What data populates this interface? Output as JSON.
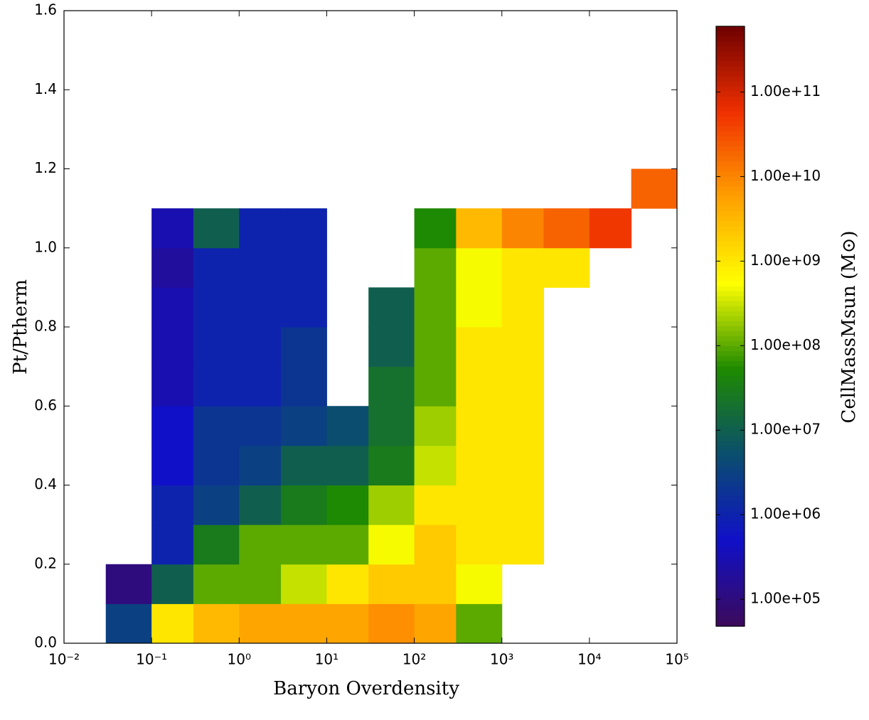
{
  "chart_data": {
    "type": "heatmap",
    "x_label": "Baryon Overdensity",
    "y_label": "Pt/Ptherm",
    "colorbar_label": "CellMassMsun (M⊙)",
    "x_log": true,
    "color_log": true,
    "xlim": [
      0.01,
      100000
    ],
    "xticks": [
      {
        "value": 0.01,
        "label": "10⁻²"
      },
      {
        "value": 0.1,
        "label": "10⁻¹"
      },
      {
        "value": 1,
        "label": "10⁰"
      },
      {
        "value": 10,
        "label": "10¹"
      },
      {
        "value": 100,
        "label": "10²"
      },
      {
        "value": 1000,
        "label": "10³"
      },
      {
        "value": 10000,
        "label": "10⁴"
      },
      {
        "value": 100000,
        "label": "10⁵"
      }
    ],
    "ylim": [
      0,
      1.6
    ],
    "yticks": [
      {
        "value": 0,
        "label": "0.0"
      },
      {
        "value": 0.2,
        "label": "0.2"
      },
      {
        "value": 0.4,
        "label": "0.4"
      },
      {
        "value": 0.6,
        "label": "0.6"
      },
      {
        "value": 0.8,
        "label": "0.8"
      },
      {
        "value": 1,
        "label": "1.0"
      },
      {
        "value": 1.2,
        "label": "1.2"
      },
      {
        "value": 1.4,
        "label": "1.4"
      },
      {
        "value": 1.6,
        "label": "1.6"
      }
    ],
    "clim": [
      48000,
      600000000000
    ],
    "cticks": [
      {
        "value": 100000,
        "label": "1.00e+05"
      },
      {
        "value": 1000000,
        "label": "1.00e+06"
      },
      {
        "value": 10000000,
        "label": "1.00e+07"
      },
      {
        "value": 100000000,
        "label": "1.00e+08"
      },
      {
        "value": 1000000000,
        "label": "1.00e+09"
      },
      {
        "value": 10000000000,
        "label": "1.00e+10"
      },
      {
        "value": 100000000000,
        "label": "1.00e+11"
      }
    ],
    "colormap": [
      "#3c0a5a",
      "#1010c8",
      "#0a4e6e",
      "#1e8a00",
      "#ffff00",
      "#ffa000",
      "#f03000",
      "#6e0000"
    ],
    "x_edges": [
      0.03,
      0.1,
      0.3,
      1,
      3,
      10,
      30,
      100,
      300,
      1000,
      3000,
      10000,
      30000,
      100000
    ],
    "y_edges": [
      0,
      0.1,
      0.2,
      0.3,
      0.4,
      0.5,
      0.6,
      0.7,
      0.8,
      0.9,
      1.0,
      1.1,
      1.2
    ],
    "z": [
      [
        3000000,
        1000000000,
        3000000000,
        5000000000,
        5000000000,
        5000000000,
        8000000000,
        5000000000,
        100000000,
        null,
        null,
        null,
        null
      ],
      [
        100000,
        10000000,
        100000000,
        100000000,
        300000000,
        1000000000,
        2000000000,
        2000000000,
        500000000,
        null,
        null,
        null,
        null
      ],
      [
        null,
        1000000,
        30000000,
        100000000,
        100000000,
        100000000,
        500000000,
        2000000000,
        1000000000,
        1000000000,
        null,
        null,
        null
      ],
      [
        null,
        1000000,
        3000000,
        10000000,
        30000000,
        50000000,
        200000000,
        1000000000,
        1000000000,
        1000000000,
        null,
        null,
        null
      ],
      [
        null,
        500000,
        2000000,
        3000000,
        10000000,
        10000000,
        30000000,
        300000000,
        1000000000,
        1000000000,
        null,
        null,
        null
      ],
      [
        null,
        500000,
        2000000,
        2000000,
        3000000,
        5000000,
        20000000,
        200000000,
        1000000000,
        1000000000,
        null,
        null,
        null
      ],
      [
        null,
        300000,
        1000000,
        1000000,
        2000000,
        null,
        20000000,
        100000000,
        1000000000,
        1000000000,
        null,
        null,
        null
      ],
      [
        null,
        300000,
        1000000,
        1000000,
        2000000,
        null,
        10000000,
        100000000,
        1000000000,
        1000000000,
        null,
        null,
        null
      ],
      [
        null,
        300000,
        1000000,
        1000000,
        1000000,
        null,
        10000000,
        100000000,
        500000000,
        1000000000,
        null,
        null,
        null
      ],
      [
        null,
        200000,
        1000000,
        1000000,
        1000000,
        null,
        null,
        100000000,
        500000000,
        1000000000,
        1000000000,
        null,
        null
      ],
      [
        null,
        300000,
        10000000,
        1000000,
        1000000,
        null,
        null,
        50000000,
        3000000000,
        10000000000,
        20000000000,
        50000000000,
        null
      ],
      [
        null,
        null,
        null,
        null,
        null,
        null,
        null,
        null,
        null,
        null,
        null,
        null,
        20000000000
      ]
    ]
  }
}
